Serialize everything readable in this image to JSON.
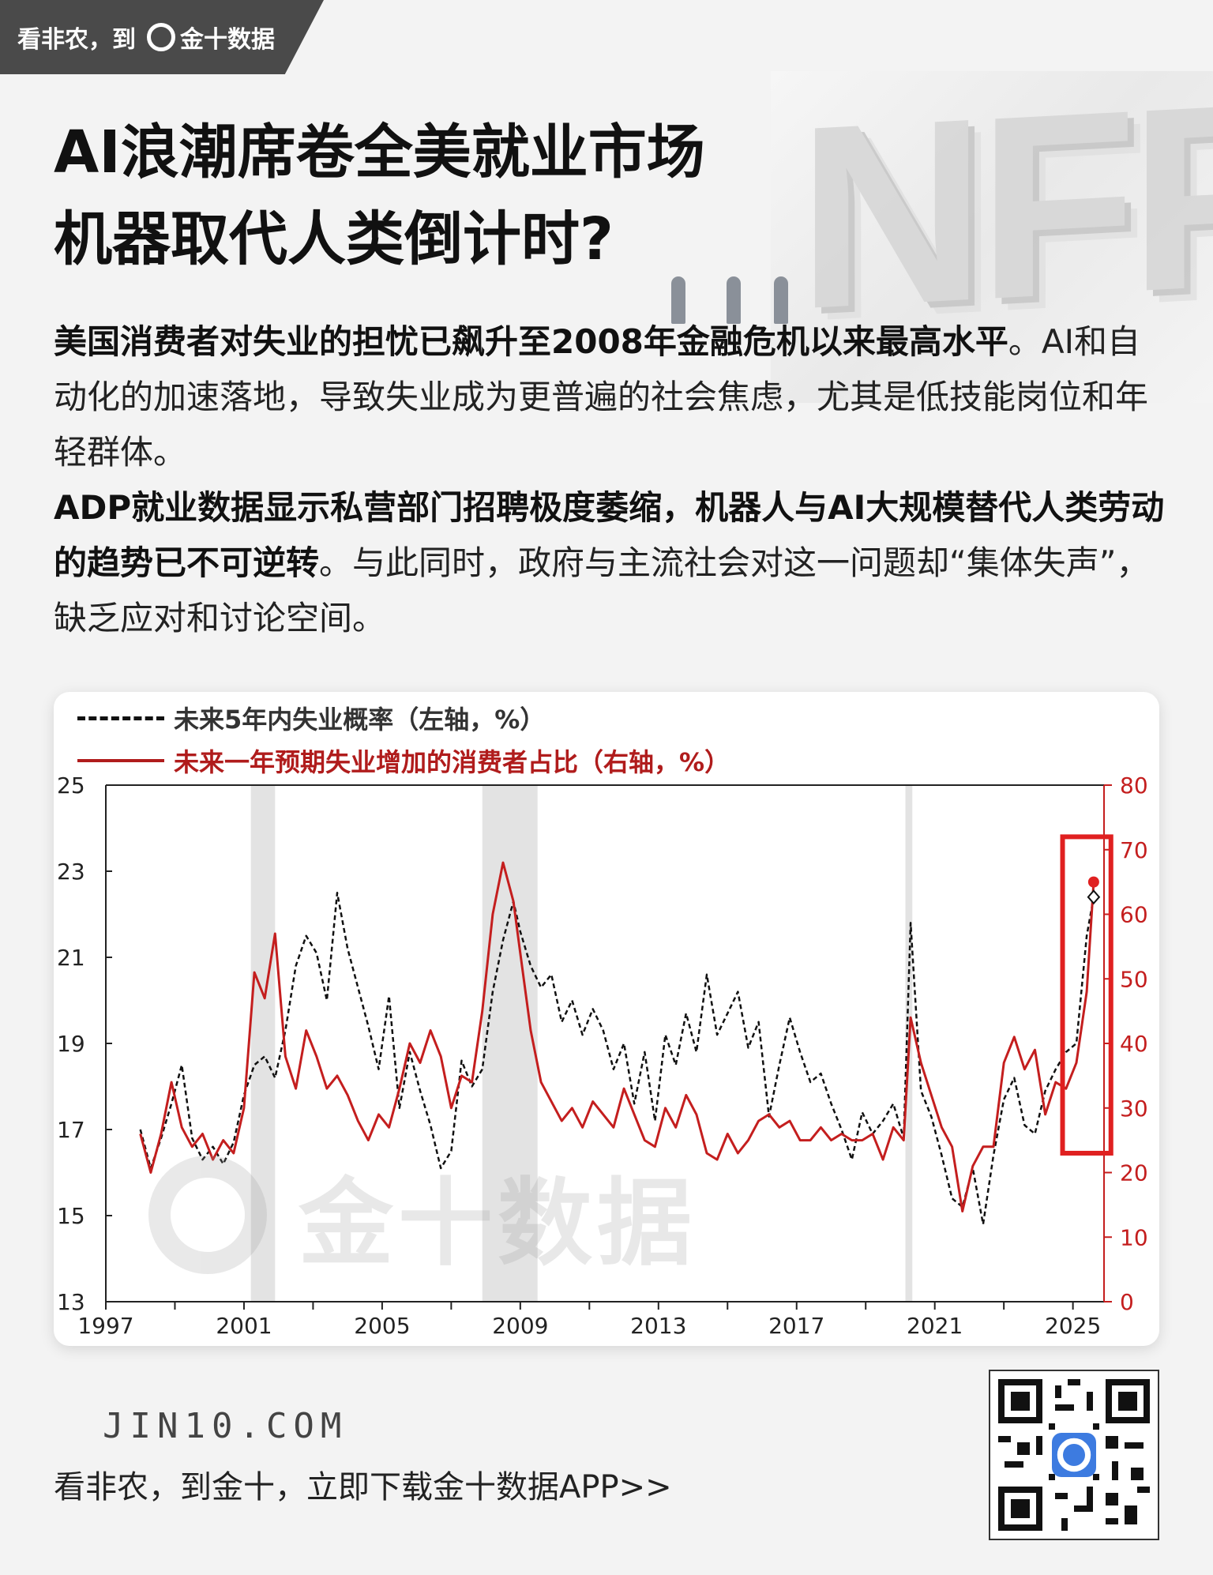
{
  "header": {
    "tag_text": "看非农，到",
    "brand": "金十数据"
  },
  "background": {
    "decor_text": "NFP"
  },
  "title": {
    "line1": "AI浪潮席卷全美就业市场",
    "line2": "机器取代人类倒计时?"
  },
  "paragraph1": {
    "bold": "美国消费者对失业的担忧已飙升至2008年金融危机以来最高水平",
    "normal": "。AI和自动化的加速落地，导致失业成为更普遍的社会焦虑，尤其是低技能岗位和年轻群体。"
  },
  "paragraph2": {
    "bold": "ADP就业数据显示私营部门招聘极度萎缩，机器人与AI大规模替代人类劳动的趋势已不可逆转",
    "normal": "。与此同时，政府与主流社会对这一问题却“集体失声”，缺乏应对和讨论空间。"
  },
  "chart_data": {
    "type": "line",
    "legend": [
      "未来5年内失业概率（左轴，%）",
      "未来一年预期失业增加的消费者占比（右轴，%）"
    ],
    "colors": {
      "left_series": "#111111",
      "right_series": "#c41e1e",
      "highlight_box": "#e02020",
      "recession": "#e3e3e3"
    },
    "xlim": [
      1997,
      2025.9
    ],
    "x_ticks": [
      1997,
      2001,
      2005,
      2009,
      2013,
      2017,
      2021,
      2025
    ],
    "left_ylim": [
      13,
      25
    ],
    "left_ticks": [
      13,
      15,
      17,
      19,
      21,
      23,
      25
    ],
    "right_ylim": [
      0,
      80
    ],
    "right_ticks": [
      0,
      10,
      20,
      30,
      40,
      50,
      60,
      70,
      80
    ],
    "recession_bands": [
      [
        2001.2,
        2001.9
      ],
      [
        2007.9,
        2009.5
      ],
      [
        2020.15,
        2020.35
      ]
    ],
    "highlight_box": {
      "x": [
        2024.7,
        2026.1
      ],
      "right_y": [
        23,
        72
      ]
    },
    "series": [
      {
        "name": "未来5年内失业概率（左轴，%）",
        "axis": "left",
        "x": [
          1998.0,
          1998.3,
          1998.6,
          1998.9,
          1999.2,
          1999.5,
          1999.8,
          2000.1,
          2000.4,
          2000.7,
          2001.0,
          2001.3,
          2001.6,
          2001.9,
          2002.2,
          2002.5,
          2002.8,
          2003.1,
          2003.4,
          2003.7,
          2004.0,
          2004.3,
          2004.6,
          2004.9,
          2005.2,
          2005.5,
          2005.8,
          2006.1,
          2006.4,
          2006.7,
          2007.0,
          2007.3,
          2007.6,
          2007.9,
          2008.2,
          2008.5,
          2008.8,
          2009.0,
          2009.3,
          2009.6,
          2009.9,
          2010.2,
          2010.5,
          2010.8,
          2011.1,
          2011.4,
          2011.7,
          2012.0,
          2012.3,
          2012.6,
          2012.9,
          2013.2,
          2013.5,
          2013.8,
          2014.1,
          2014.4,
          2014.7,
          2015.0,
          2015.3,
          2015.6,
          2015.9,
          2016.2,
          2016.5,
          2016.8,
          2017.1,
          2017.4,
          2017.7,
          2018.0,
          2018.3,
          2018.6,
          2018.9,
          2019.2,
          2019.5,
          2019.8,
          2020.1,
          2020.3,
          2020.6,
          2020.9,
          2021.2,
          2021.5,
          2021.8,
          2022.1,
          2022.4,
          2022.7,
          2023.0,
          2023.3,
          2023.6,
          2023.9,
          2024.2,
          2024.5,
          2024.8,
          2025.1,
          2025.4,
          2025.6
        ],
        "values": [
          17.0,
          16.1,
          16.8,
          17.6,
          18.5,
          16.8,
          16.3,
          16.6,
          16.2,
          16.7,
          17.8,
          18.5,
          18.7,
          18.2,
          19.3,
          20.8,
          21.5,
          21.1,
          20.0,
          22.5,
          21.2,
          20.3,
          19.4,
          18.4,
          20.1,
          17.5,
          18.8,
          17.9,
          17.1,
          16.1,
          16.5,
          18.6,
          18.0,
          18.4,
          20.2,
          21.4,
          22.3,
          21.6,
          20.8,
          20.3,
          20.6,
          19.5,
          20.0,
          19.2,
          19.8,
          19.3,
          18.4,
          19.0,
          17.6,
          18.8,
          17.2,
          19.2,
          18.5,
          19.7,
          18.8,
          20.6,
          19.2,
          19.7,
          20.2,
          18.9,
          19.5,
          17.3,
          18.5,
          19.6,
          18.8,
          18.1,
          18.3,
          17.6,
          17.0,
          16.3,
          17.4,
          16.9,
          17.2,
          17.6,
          16.8,
          21.8,
          17.9,
          17.3,
          16.4,
          15.4,
          15.2,
          16.1,
          14.8,
          16.4,
          17.7,
          18.2,
          17.1,
          16.9,
          17.9,
          18.4,
          18.8,
          19.0,
          21.5,
          22.4
        ]
      },
      {
        "name": "未来一年预期失业增加的消费者占比（右轴，%）",
        "axis": "right",
        "x": [
          1998.0,
          1998.3,
          1998.6,
          1998.9,
          1999.2,
          1999.5,
          1999.8,
          2000.1,
          2000.4,
          2000.7,
          2001.0,
          2001.3,
          2001.6,
          2001.9,
          2002.2,
          2002.5,
          2002.8,
          2003.1,
          2003.4,
          2003.7,
          2004.0,
          2004.3,
          2004.6,
          2004.9,
          2005.2,
          2005.5,
          2005.8,
          2006.1,
          2006.4,
          2006.7,
          2007.0,
          2007.3,
          2007.6,
          2007.9,
          2008.2,
          2008.5,
          2008.8,
          2009.0,
          2009.3,
          2009.6,
          2009.9,
          2010.2,
          2010.5,
          2010.8,
          2011.1,
          2011.4,
          2011.7,
          2012.0,
          2012.3,
          2012.6,
          2012.9,
          2013.2,
          2013.5,
          2013.8,
          2014.1,
          2014.4,
          2014.7,
          2015.0,
          2015.3,
          2015.6,
          2015.9,
          2016.2,
          2016.5,
          2016.8,
          2017.1,
          2017.4,
          2017.7,
          2018.0,
          2018.3,
          2018.6,
          2018.9,
          2019.2,
          2019.5,
          2019.8,
          2020.1,
          2020.3,
          2020.6,
          2020.9,
          2021.2,
          2021.5,
          2021.8,
          2022.1,
          2022.4,
          2022.7,
          2023.0,
          2023.3,
          2023.6,
          2023.9,
          2024.2,
          2024.5,
          2024.8,
          2025.1,
          2025.4,
          2025.6
        ],
        "values": [
          26,
          20,
          26,
          34,
          27,
          24,
          26,
          22,
          25,
          23,
          30,
          51,
          47,
          57,
          38,
          33,
          42,
          38,
          33,
          35,
          32,
          28,
          25,
          29,
          27,
          33,
          40,
          37,
          42,
          38,
          30,
          35,
          34,
          45,
          60,
          68,
          62,
          54,
          42,
          34,
          31,
          28,
          30,
          27,
          31,
          29,
          27,
          33,
          29,
          25,
          24,
          30,
          27,
          32,
          29,
          23,
          22,
          26,
          23,
          25,
          28,
          29,
          27,
          28,
          25,
          25,
          27,
          25,
          26,
          25,
          25,
          26,
          22,
          27,
          25,
          44,
          37,
          32,
          27,
          24,
          14,
          21,
          24,
          24,
          37,
          41,
          36,
          39,
          29,
          34,
          33,
          37,
          48,
          65
        ]
      }
    ],
    "end_markers": {
      "left_last": 22.4,
      "right_last": 65
    }
  },
  "footer": {
    "site": "JIN10.COM",
    "slogan": "看非农，到金十，立即下载金十数据APP>>"
  },
  "watermark": {
    "text": "金十数据"
  }
}
